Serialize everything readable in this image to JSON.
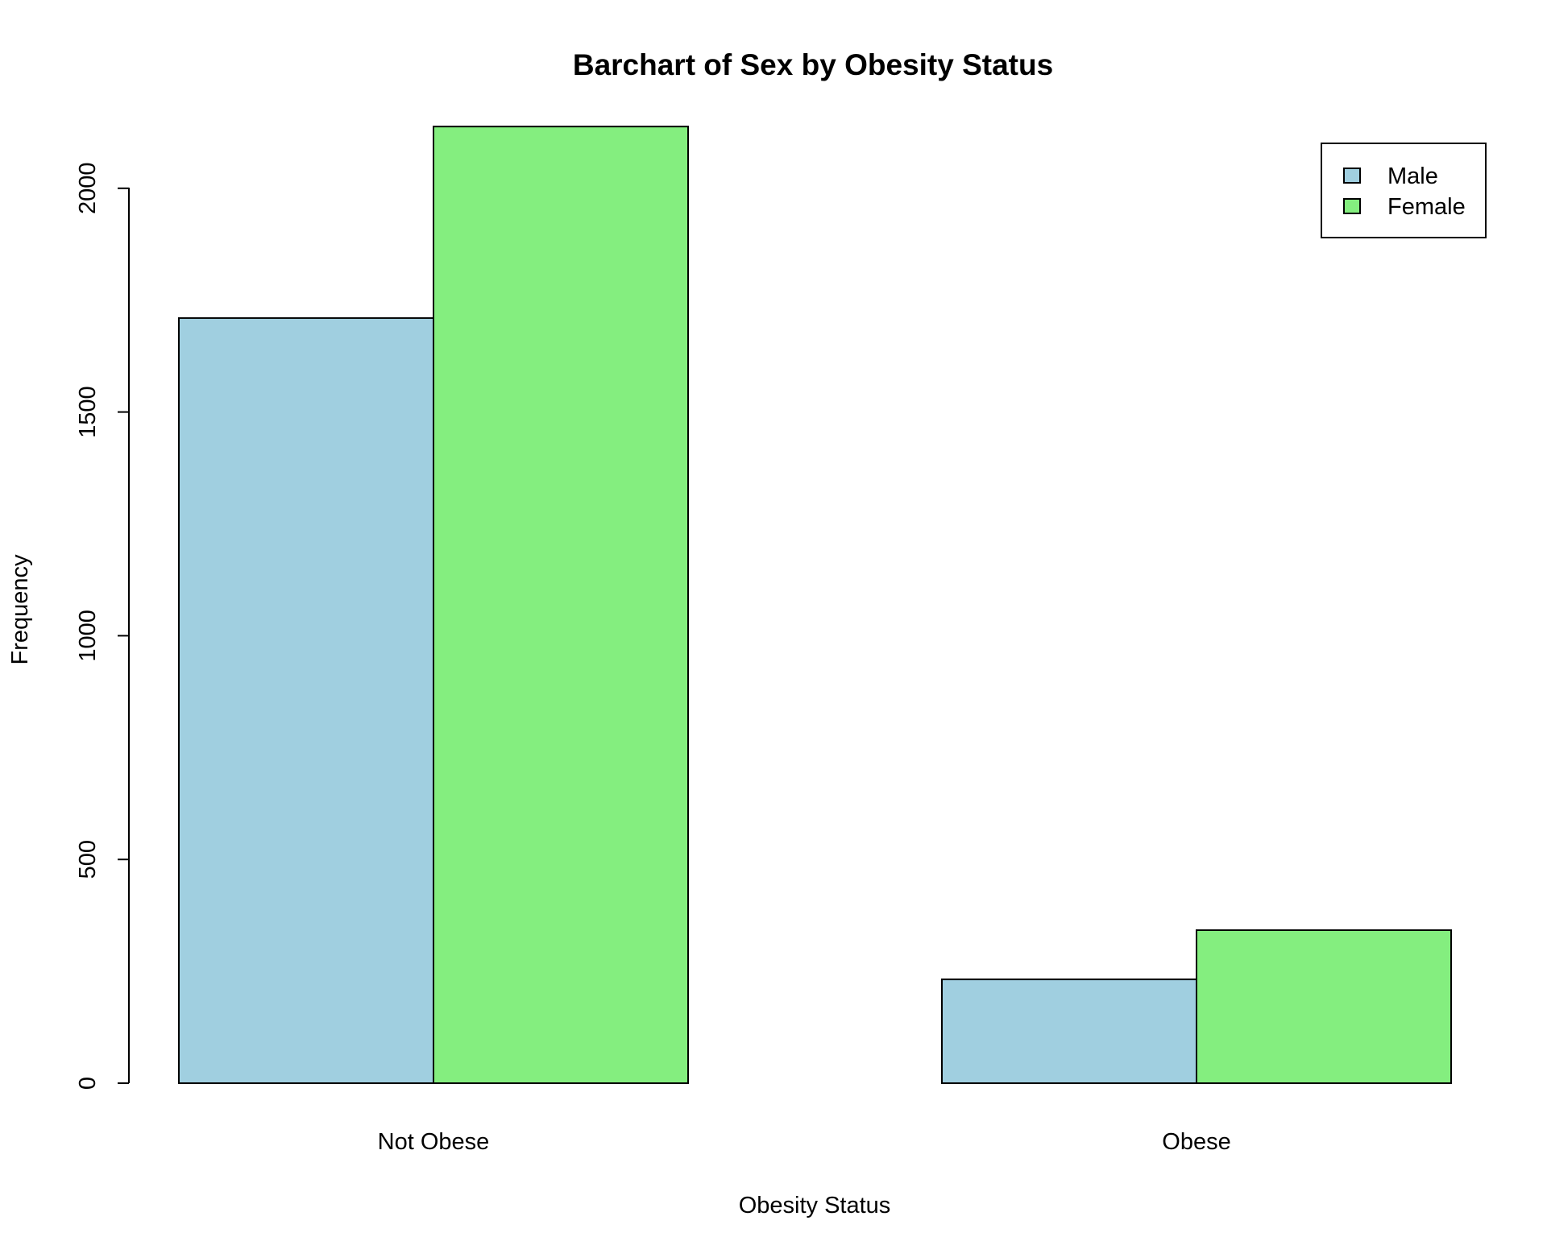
{
  "chart_data": {
    "type": "bar",
    "title": "Barchart of Sex by Obesity Status",
    "xlabel": "Obesity Status",
    "ylabel": "Frequency",
    "categories": [
      "Not Obese",
      "Obese"
    ],
    "series": [
      {
        "name": "Male",
        "color": "#a0cfe0",
        "values": [
          1710,
          232
        ]
      },
      {
        "name": "Female",
        "color": "#84ee7f",
        "values": [
          2138,
          342
        ]
      }
    ],
    "ylim": [
      0,
      2138
    ],
    "yticks": [
      0,
      500,
      1000,
      1500,
      2000
    ],
    "grid": false,
    "legend_position": "top-right"
  }
}
